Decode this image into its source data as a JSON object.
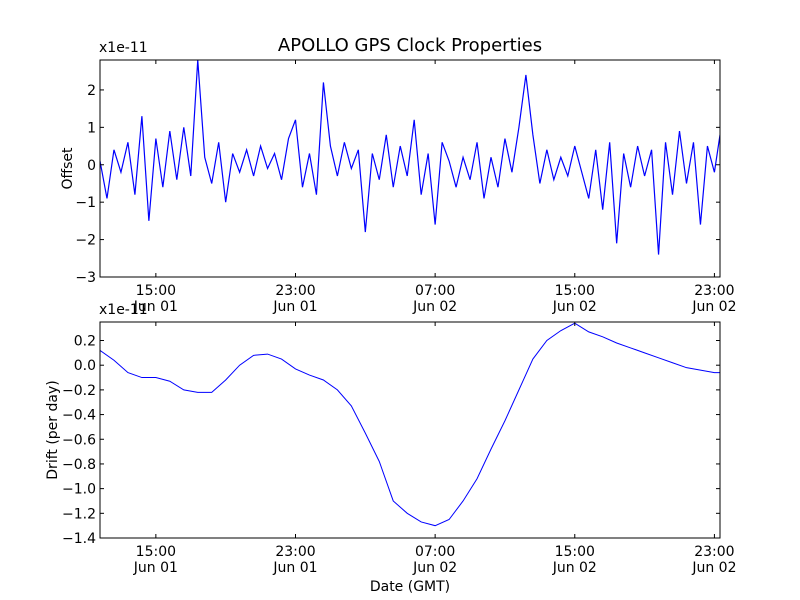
{
  "figure_title": "APOLLO GPS Clock Properties",
  "chart_data": [
    {
      "type": "line",
      "ylabel": "Offset",
      "xlabel": "",
      "y_multiplier": "x1e-11",
      "ylim": [
        -3,
        2.8
      ],
      "xlim": [
        0,
        44.4
      ],
      "yticks": [
        {
          "v": -3,
          "label": "−3"
        },
        {
          "v": -2,
          "label": "−2"
        },
        {
          "v": -1,
          "label": "−1"
        },
        {
          "v": 0,
          "label": "0"
        },
        {
          "v": 1,
          "label": "1"
        },
        {
          "v": 2,
          "label": "2"
        }
      ],
      "xticks": [
        {
          "v": 4.0,
          "time": "15:00",
          "date": "Jun 01"
        },
        {
          "v": 14.0,
          "time": "23:00",
          "date": "Jun 01"
        },
        {
          "v": 24.0,
          "time": "07:00",
          "date": "Jun 02"
        },
        {
          "v": 34.0,
          "time": "15:00",
          "date": "Jun 02"
        },
        {
          "v": 44.0,
          "time": "23:00",
          "date": "Jun 02"
        }
      ],
      "color": "#0000ff",
      "series": [
        {
          "x": [
            0,
            0.5,
            1,
            1.5,
            2,
            2.5,
            3,
            3.5,
            4,
            4.5,
            5,
            5.5,
            6,
            6.5,
            7,
            7.5,
            8,
            8.5,
            9,
            9.5,
            10,
            10.5,
            11,
            11.5,
            12,
            12.5,
            13,
            13.5,
            14,
            14.5,
            15,
            15.5,
            16,
            16.5,
            17,
            17.5,
            18,
            18.5,
            19,
            19.5,
            20,
            20.5,
            21,
            21.5,
            22,
            22.5,
            23,
            23.5,
            24,
            24.5,
            25,
            25.5,
            26,
            26.5,
            27,
            27.5,
            28,
            28.5,
            29,
            29.5,
            30,
            30.5,
            31,
            31.5,
            32,
            32.5,
            33,
            33.5,
            34,
            34.5,
            35,
            35.5,
            36,
            36.5,
            37,
            37.5,
            38,
            38.5,
            39,
            39.5,
            40,
            40.5,
            41,
            41.5,
            42,
            42.5,
            43,
            43.5,
            44,
            44.4
          ],
          "y": [
            0.1,
            -0.9,
            0.4,
            -0.2,
            0.6,
            -0.8,
            1.3,
            -1.5,
            0.7,
            -0.6,
            0.9,
            -0.4,
            1.0,
            -0.3,
            2.8,
            0.2,
            -0.5,
            0.6,
            -1.0,
            0.3,
            -0.2,
            0.4,
            -0.3,
            0.5,
            -0.1,
            0.3,
            -0.4,
            0.7,
            1.2,
            -0.6,
            0.3,
            -0.8,
            2.2,
            0.5,
            -0.3,
            0.6,
            -0.1,
            0.4,
            -1.8,
            0.3,
            -0.4,
            0.8,
            -0.6,
            0.5,
            -0.3,
            1.2,
            -0.8,
            0.3,
            -1.6,
            0.6,
            0.1,
            -0.6,
            0.2,
            -0.4,
            0.6,
            -0.9,
            0.2,
            -0.6,
            0.7,
            -0.2,
            1.0,
            2.4,
            0.8,
            -0.5,
            0.4,
            -0.4,
            0.2,
            -0.3,
            0.5,
            -0.2,
            -0.9,
            0.4,
            -1.2,
            0.6,
            -2.1,
            0.3,
            -0.6,
            0.5,
            -0.3,
            0.4,
            -2.4,
            0.6,
            -0.8,
            0.9,
            -0.5,
            0.6,
            -1.6,
            0.5,
            -0.2,
            0.8
          ]
        }
      ]
    },
    {
      "type": "line",
      "ylabel": "Drift (per day)",
      "xlabel": "Date (GMT)",
      "y_multiplier": "x1e-11",
      "ylim": [
        -1.4,
        0.35
      ],
      "xlim": [
        0,
        44.4
      ],
      "yticks": [
        {
          "v": -1.4,
          "label": "−1.4"
        },
        {
          "v": -1.2,
          "label": "−1.2"
        },
        {
          "v": -1.0,
          "label": "−1.0"
        },
        {
          "v": -0.8,
          "label": "−0.8"
        },
        {
          "v": -0.6,
          "label": "−0.6"
        },
        {
          "v": -0.4,
          "label": "−0.4"
        },
        {
          "v": -0.2,
          "label": "−0.2"
        },
        {
          "v": 0.0,
          "label": "0.0"
        },
        {
          "v": 0.2,
          "label": "0.2"
        }
      ],
      "xticks": [
        {
          "v": 4.0,
          "time": "15:00",
          "date": "Jun 01"
        },
        {
          "v": 14.0,
          "time": "23:00",
          "date": "Jun 01"
        },
        {
          "v": 24.0,
          "time": "07:00",
          "date": "Jun 02"
        },
        {
          "v": 34.0,
          "time": "15:00",
          "date": "Jun 02"
        },
        {
          "v": 44.0,
          "time": "23:00",
          "date": "Jun 02"
        }
      ],
      "color": "#0000ff",
      "series": [
        {
          "x": [
            0,
            1,
            2,
            3,
            4,
            5,
            6,
            7,
            8,
            9,
            10,
            11,
            12,
            13,
            14,
            15,
            16,
            17,
            18,
            19,
            20,
            21,
            22,
            23,
            24,
            25,
            26,
            27,
            28,
            29,
            30,
            31,
            32,
            33,
            34,
            35,
            36,
            37,
            38,
            39,
            40,
            41,
            42,
            43,
            44,
            44.4
          ],
          "y": [
            0.12,
            0.04,
            -0.06,
            -0.1,
            -0.1,
            -0.13,
            -0.2,
            -0.22,
            -0.22,
            -0.12,
            0.0,
            0.08,
            0.09,
            0.05,
            -0.03,
            -0.08,
            -0.12,
            -0.2,
            -0.33,
            -0.55,
            -0.78,
            -1.1,
            -1.2,
            -1.27,
            -1.3,
            -1.25,
            -1.1,
            -0.92,
            -0.68,
            -0.45,
            -0.2,
            0.05,
            0.2,
            0.28,
            0.34,
            0.27,
            0.23,
            0.18,
            0.14,
            0.1,
            0.06,
            0.02,
            -0.02,
            -0.04,
            -0.06,
            -0.06
          ]
        }
      ]
    }
  ]
}
